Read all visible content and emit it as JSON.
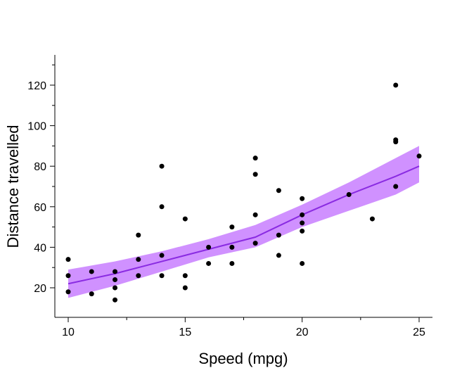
{
  "chart_data": {
    "type": "scatter",
    "title": "",
    "xlabel": "Speed (mpg)",
    "ylabel": "Distance travelled",
    "xlim": [
      9.4,
      25.6
    ],
    "ylim": [
      4,
      135
    ],
    "x_ticks": [
      10,
      15,
      20,
      25
    ],
    "x_tick_labels": [
      "10",
      "15",
      "20",
      "25"
    ],
    "x_minor_ticks": [
      12.5,
      17.5,
      22.5
    ],
    "y_ticks": [
      20,
      40,
      60,
      80,
      100,
      120
    ],
    "y_tick_labels": [
      "20",
      "40",
      "60",
      "80",
      "100",
      "120"
    ],
    "y_minor_ticks": [
      30,
      50,
      70,
      90,
      110,
      130
    ],
    "grid": false,
    "series": [
      {
        "name": "observations",
        "type": "scatter",
        "color": "#000000",
        "points": [
          {
            "x": 10,
            "y": 34
          },
          {
            "x": 10,
            "y": 26
          },
          {
            "x": 10,
            "y": 18
          },
          {
            "x": 11,
            "y": 28
          },
          {
            "x": 11,
            "y": 17
          },
          {
            "x": 12,
            "y": 28
          },
          {
            "x": 12,
            "y": 24
          },
          {
            "x": 12,
            "y": 20
          },
          {
            "x": 12,
            "y": 14
          },
          {
            "x": 13,
            "y": 46
          },
          {
            "x": 13,
            "y": 34
          },
          {
            "x": 13,
            "y": 26
          },
          {
            "x": 14,
            "y": 80
          },
          {
            "x": 14,
            "y": 60
          },
          {
            "x": 14,
            "y": 36
          },
          {
            "x": 14,
            "y": 26
          },
          {
            "x": 15,
            "y": 54
          },
          {
            "x": 15,
            "y": 26
          },
          {
            "x": 15,
            "y": 20
          },
          {
            "x": 16,
            "y": 40
          },
          {
            "x": 16,
            "y": 32
          },
          {
            "x": 17,
            "y": 50
          },
          {
            "x": 17,
            "y": 40
          },
          {
            "x": 17,
            "y": 32
          },
          {
            "x": 18,
            "y": 84
          },
          {
            "x": 18,
            "y": 76
          },
          {
            "x": 18,
            "y": 56
          },
          {
            "x": 18,
            "y": 42
          },
          {
            "x": 19,
            "y": 68
          },
          {
            "x": 19,
            "y": 46
          },
          {
            "x": 19,
            "y": 36
          },
          {
            "x": 20,
            "y": 64
          },
          {
            "x": 20,
            "y": 56
          },
          {
            "x": 20,
            "y": 52
          },
          {
            "x": 20,
            "y": 48
          },
          {
            "x": 20,
            "y": 32
          },
          {
            "x": 22,
            "y": 66
          },
          {
            "x": 23,
            "y": 54
          },
          {
            "x": 24,
            "y": 120
          },
          {
            "x": 24,
            "y": 93
          },
          {
            "x": 24,
            "y": 92
          },
          {
            "x": 24,
            "y": 70
          },
          {
            "x": 25,
            "y": 85
          }
        ]
      },
      {
        "name": "fitted line",
        "type": "line",
        "color": "#8a2be2",
        "x": [
          10,
          12,
          14,
          16,
          18,
          20,
          22,
          24,
          25
        ],
        "y": [
          22,
          27,
          33,
          39,
          45,
          56,
          66,
          75,
          80
        ]
      },
      {
        "name": "confidence band",
        "type": "area",
        "color": "#cc88ff",
        "x": [
          10,
          12,
          14,
          16,
          18,
          20,
          22,
          24,
          25
        ],
        "lower": [
          15,
          21,
          28,
          35,
          40,
          50,
          58,
          66,
          72
        ],
        "upper": [
          29,
          33,
          38,
          44,
          51,
          61,
          72,
          84,
          90
        ]
      }
    ]
  }
}
